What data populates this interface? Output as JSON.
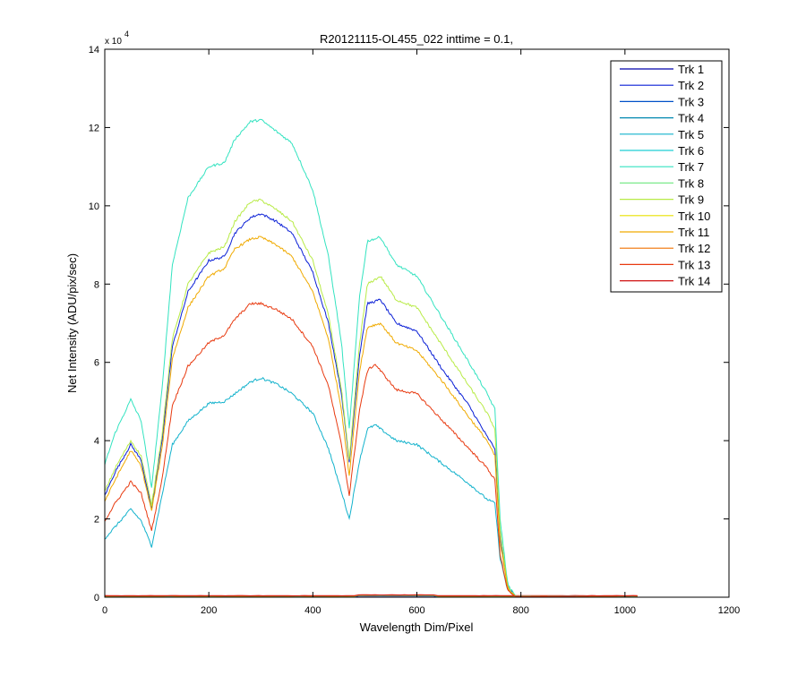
{
  "chart_data": {
    "type": "line",
    "title": "R20121115-OL455_022 inttime = 0.1,",
    "xlabel": "Wavelength Dim/Pixel",
    "ylabel": "Net Intensity (ADU/pix/sec)",
    "y_multiplier_label": "x 10",
    "y_multiplier_exponent": "4",
    "xlim": [
      0,
      1200
    ],
    "ylim": [
      0,
      14
    ],
    "xticks": [
      0,
      200,
      400,
      600,
      800,
      1000,
      1200
    ],
    "yticks": [
      0,
      2,
      4,
      6,
      8,
      10,
      12,
      14
    ],
    "grid": false,
    "legend_position": "top-right",
    "series": [
      {
        "name": "Trk 1",
        "color": "#0000AA",
        "kind": "flat",
        "level": 0.01
      },
      {
        "name": "Trk 2",
        "color": "#0A1FD6",
        "kind": "spectrum",
        "points": [
          [
            0,
            2.6
          ],
          [
            20,
            3.2
          ],
          [
            50,
            3.9
          ],
          [
            70,
            3.5
          ],
          [
            90,
            2.25
          ],
          [
            110,
            4.0
          ],
          [
            130,
            6.4
          ],
          [
            160,
            7.8
          ],
          [
            200,
            8.6
          ],
          [
            230,
            8.7
          ],
          [
            250,
            9.3
          ],
          [
            280,
            9.7
          ],
          [
            300,
            9.8
          ],
          [
            330,
            9.6
          ],
          [
            360,
            9.3
          ],
          [
            400,
            8.3
          ],
          [
            430,
            7.0
          ],
          [
            455,
            5.2
          ],
          [
            470,
            3.45
          ],
          [
            490,
            6.2
          ],
          [
            505,
            7.5
          ],
          [
            530,
            7.6
          ],
          [
            560,
            7.0
          ],
          [
            600,
            6.8
          ],
          [
            650,
            5.8
          ],
          [
            700,
            4.9
          ],
          [
            735,
            4.1
          ],
          [
            750,
            3.8
          ],
          [
            760,
            1.5
          ],
          [
            775,
            0.25
          ],
          [
            790,
            0.02
          ],
          [
            1025,
            0.0
          ]
        ]
      },
      {
        "name": "Trk 3",
        "color": "#0050C8",
        "kind": "flat",
        "level": 0.02
      },
      {
        "name": "Trk 4",
        "color": "#0088B0",
        "kind": "flat",
        "level": 0.02
      },
      {
        "name": "Trk 5",
        "color": "#12B2CC",
        "kind": "spectrum",
        "points": [
          [
            0,
            1.5
          ],
          [
            20,
            1.8
          ],
          [
            50,
            2.25
          ],
          [
            70,
            1.95
          ],
          [
            90,
            1.3
          ],
          [
            110,
            2.6
          ],
          [
            130,
            3.9
          ],
          [
            160,
            4.5
          ],
          [
            200,
            4.95
          ],
          [
            230,
            5.0
          ],
          [
            250,
            5.2
          ],
          [
            280,
            5.5
          ],
          [
            300,
            5.6
          ],
          [
            330,
            5.45
          ],
          [
            360,
            5.2
          ],
          [
            400,
            4.7
          ],
          [
            430,
            3.8
          ],
          [
            455,
            2.7
          ],
          [
            470,
            2.0
          ],
          [
            490,
            3.5
          ],
          [
            505,
            4.3
          ],
          [
            520,
            4.4
          ],
          [
            560,
            4.0
          ],
          [
            600,
            3.9
          ],
          [
            650,
            3.4
          ],
          [
            700,
            2.9
          ],
          [
            735,
            2.5
          ],
          [
            750,
            2.4
          ],
          [
            760,
            1.0
          ],
          [
            775,
            0.15
          ],
          [
            790,
            0.02
          ],
          [
            1025,
            0.0
          ]
        ]
      },
      {
        "name": "Trk 6",
        "color": "#1ECFD3",
        "kind": "flat",
        "level": 0.02
      },
      {
        "name": "Trk 7",
        "color": "#33E3C0",
        "kind": "spectrum",
        "points": [
          [
            0,
            3.4
          ],
          [
            20,
            4.2
          ],
          [
            50,
            5.05
          ],
          [
            70,
            4.5
          ],
          [
            90,
            2.8
          ],
          [
            110,
            5.3
          ],
          [
            130,
            8.5
          ],
          [
            160,
            10.2
          ],
          [
            200,
            11.0
          ],
          [
            230,
            11.1
          ],
          [
            250,
            11.7
          ],
          [
            280,
            12.15
          ],
          [
            300,
            12.2
          ],
          [
            330,
            11.9
          ],
          [
            360,
            11.6
          ],
          [
            400,
            10.4
          ],
          [
            430,
            8.7
          ],
          [
            455,
            6.5
          ],
          [
            470,
            4.3
          ],
          [
            490,
            7.7
          ],
          [
            505,
            9.1
          ],
          [
            530,
            9.2
          ],
          [
            560,
            8.5
          ],
          [
            600,
            8.2
          ],
          [
            650,
            7.1
          ],
          [
            700,
            6.0
          ],
          [
            735,
            5.2
          ],
          [
            750,
            4.8
          ],
          [
            760,
            2.0
          ],
          [
            775,
            0.3
          ],
          [
            790,
            0.03
          ],
          [
            1025,
            0.0
          ]
        ]
      },
      {
        "name": "Trk 8",
        "color": "#7BEA8A",
        "kind": "flat",
        "level": 0.03
      },
      {
        "name": "Trk 9",
        "color": "#B8EB46",
        "kind": "spectrum",
        "points": [
          [
            0,
            2.7
          ],
          [
            20,
            3.3
          ],
          [
            50,
            4.0
          ],
          [
            70,
            3.6
          ],
          [
            90,
            2.35
          ],
          [
            110,
            4.15
          ],
          [
            130,
            6.6
          ],
          [
            160,
            8.0
          ],
          [
            200,
            8.8
          ],
          [
            230,
            8.95
          ],
          [
            250,
            9.6
          ],
          [
            280,
            10.1
          ],
          [
            300,
            10.15
          ],
          [
            330,
            9.9
          ],
          [
            360,
            9.6
          ],
          [
            400,
            8.6
          ],
          [
            430,
            7.2
          ],
          [
            455,
            5.3
          ],
          [
            470,
            3.5
          ],
          [
            490,
            6.5
          ],
          [
            505,
            8.0
          ],
          [
            530,
            8.2
          ],
          [
            560,
            7.6
          ],
          [
            600,
            7.4
          ],
          [
            650,
            6.4
          ],
          [
            700,
            5.4
          ],
          [
            735,
            4.7
          ],
          [
            750,
            4.3
          ],
          [
            760,
            1.7
          ],
          [
            775,
            0.25
          ],
          [
            790,
            0.02
          ],
          [
            1025,
            0.0
          ]
        ]
      },
      {
        "name": "Trk 10",
        "color": "#E8E000",
        "kind": "flat",
        "level": 0.03
      },
      {
        "name": "Trk 11",
        "color": "#F0AA00",
        "kind": "spectrum",
        "points": [
          [
            0,
            2.45
          ],
          [
            20,
            3.0
          ],
          [
            50,
            3.75
          ],
          [
            70,
            3.35
          ],
          [
            90,
            2.2
          ],
          [
            110,
            3.8
          ],
          [
            130,
            6.1
          ],
          [
            160,
            7.4
          ],
          [
            200,
            8.2
          ],
          [
            230,
            8.4
          ],
          [
            250,
            8.9
          ],
          [
            280,
            9.15
          ],
          [
            300,
            9.2
          ],
          [
            330,
            9.0
          ],
          [
            360,
            8.7
          ],
          [
            400,
            7.8
          ],
          [
            430,
            6.6
          ],
          [
            455,
            4.8
          ],
          [
            470,
            3.1
          ],
          [
            490,
            5.8
          ],
          [
            505,
            6.9
          ],
          [
            530,
            7.0
          ],
          [
            560,
            6.5
          ],
          [
            600,
            6.3
          ],
          [
            650,
            5.5
          ],
          [
            700,
            4.6
          ],
          [
            735,
            4.0
          ],
          [
            750,
            3.6
          ],
          [
            760,
            1.4
          ],
          [
            775,
            0.2
          ],
          [
            790,
            0.02
          ],
          [
            1025,
            0.0
          ]
        ]
      },
      {
        "name": "Trk 12",
        "color": "#F07000",
        "kind": "flat",
        "level": 0.03
      },
      {
        "name": "Trk 13",
        "color": "#E83A10",
        "kind": "spectrum",
        "points": [
          [
            0,
            1.95
          ],
          [
            20,
            2.4
          ],
          [
            50,
            2.95
          ],
          [
            70,
            2.65
          ],
          [
            90,
            1.7
          ],
          [
            110,
            3.0
          ],
          [
            130,
            4.9
          ],
          [
            160,
            5.9
          ],
          [
            200,
            6.5
          ],
          [
            230,
            6.7
          ],
          [
            250,
            7.1
          ],
          [
            280,
            7.5
          ],
          [
            300,
            7.5
          ],
          [
            330,
            7.35
          ],
          [
            360,
            7.1
          ],
          [
            400,
            6.4
          ],
          [
            430,
            5.4
          ],
          [
            455,
            3.9
          ],
          [
            470,
            2.6
          ],
          [
            490,
            4.8
          ],
          [
            505,
            5.8
          ],
          [
            520,
            5.95
          ],
          [
            560,
            5.3
          ],
          [
            600,
            5.2
          ],
          [
            650,
            4.5
          ],
          [
            700,
            3.8
          ],
          [
            735,
            3.3
          ],
          [
            750,
            3.0
          ],
          [
            760,
            1.1
          ],
          [
            775,
            0.15
          ],
          [
            790,
            0.02
          ],
          [
            1025,
            0.0
          ]
        ]
      },
      {
        "name": "Trk 14",
        "color": "#D01010",
        "kind": "flat",
        "level": 0.04
      }
    ]
  }
}
